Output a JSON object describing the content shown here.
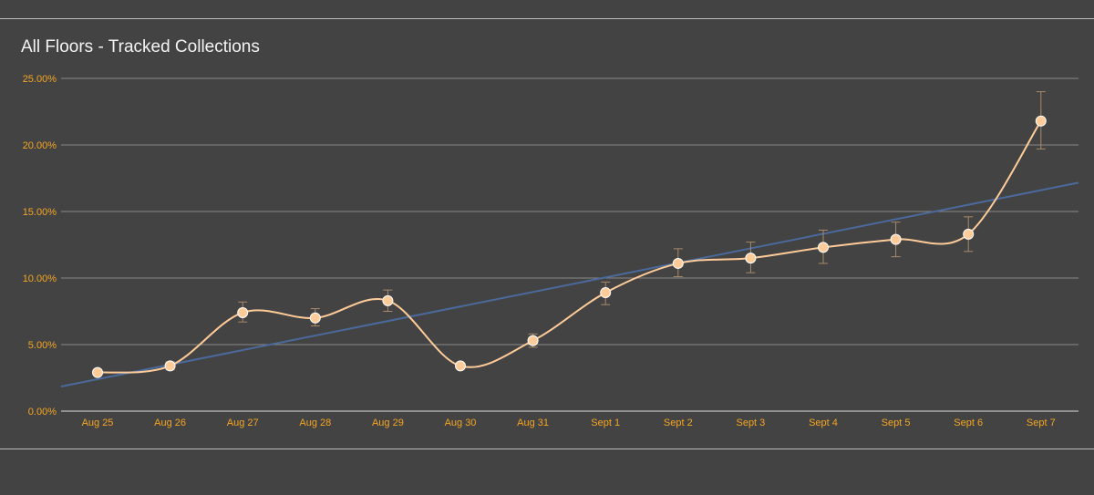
{
  "chart_data": {
    "type": "line",
    "title": "All Floors - Tracked Collections",
    "xlabel": "",
    "ylabel": "",
    "categories": [
      "Aug 25",
      "Aug 26",
      "Aug 27",
      "Aug 28",
      "Aug 29",
      "Aug 30",
      "Aug 31",
      "Sept 1",
      "Sept 2",
      "Sept 3",
      "Sept 4",
      "Sept 5",
      "Sept 6",
      "Sept 7"
    ],
    "series": [
      {
        "values": [
          2.9,
          3.4,
          7.4,
          7.0,
          8.3,
          3.4,
          5.3,
          8.9,
          11.1,
          11.5,
          12.3,
          12.9,
          13.3,
          21.8
        ],
        "error_low": [
          2.7,
          3.1,
          6.7,
          6.4,
          7.5,
          3.2,
          4.8,
          8.0,
          10.1,
          10.4,
          11.1,
          11.6,
          12.0,
          19.7
        ],
        "error_high": [
          3.1,
          3.7,
          8.2,
          7.7,
          9.1,
          3.6,
          5.8,
          9.7,
          12.2,
          12.7,
          13.6,
          14.2,
          14.6,
          24.0
        ],
        "color": "#ffcc99",
        "smooth": true
      }
    ],
    "trendline": {
      "start": 2.4,
      "end": 16.6,
      "color": "#4a6a9c"
    },
    "ylim": [
      0,
      25
    ],
    "yticks": [
      "0.00%",
      "5.00%",
      "10.00%",
      "15.00%",
      "20.00%",
      "25.00%"
    ],
    "grid": true,
    "legend": "none",
    "colors": {
      "background": "#434343",
      "grid": "#8a8a8a",
      "tick_text": "#f5a623",
      "title_text": "#f3f3f3",
      "error_bar": "#a88a6a"
    }
  }
}
